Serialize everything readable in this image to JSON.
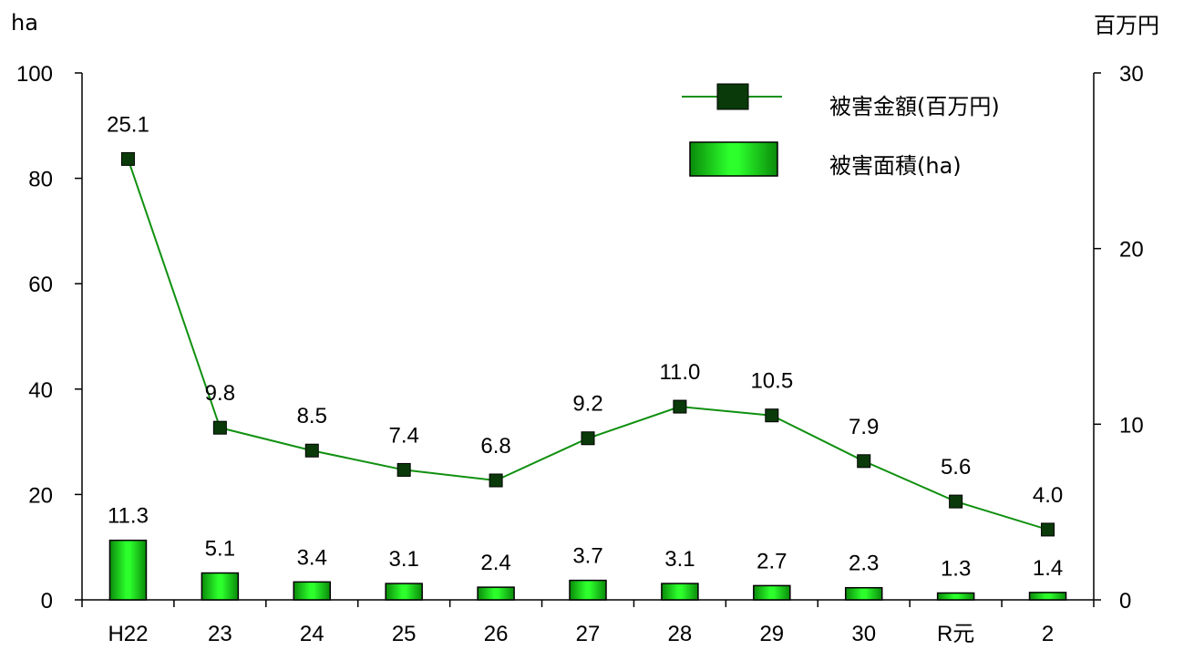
{
  "chart_data": {
    "type": "bar+line",
    "categories": [
      "H22",
      "23",
      "24",
      "25",
      "26",
      "27",
      "28",
      "29",
      "30",
      "R元",
      "2"
    ],
    "left_axis": {
      "unit_label": "ha",
      "range": [
        0,
        100
      ],
      "ticks": [
        "0",
        "20",
        "40",
        "60",
        "80",
        "100"
      ]
    },
    "right_axis": {
      "unit_label": "百万円",
      "range": [
        0,
        30
      ],
      "ticks": [
        "0",
        "10",
        "20",
        "30"
      ]
    },
    "series": [
      {
        "name": "被害金額(百万円)",
        "kind": "line",
        "axis": "right",
        "color": "#109010",
        "marker_color": "#0a3a0a",
        "values": [
          25.1,
          9.8,
          8.5,
          7.4,
          6.8,
          9.2,
          11.0,
          10.5,
          7.9,
          5.6,
          4.0
        ],
        "value_labels": [
          "25.1",
          "9.8",
          "8.5",
          "7.4",
          "6.8",
          "9.2",
          "11.0",
          "10.5",
          "7.9",
          "5.6",
          "4.0"
        ]
      },
      {
        "name": "被害面積(ha)",
        "kind": "bar",
        "axis": "left",
        "color": "#22ee22",
        "values": [
          11.3,
          5.1,
          3.4,
          3.1,
          2.4,
          3.7,
          3.1,
          2.7,
          2.3,
          1.3,
          1.4
        ],
        "value_labels": [
          "11.3",
          "5.1",
          "3.4",
          "3.1",
          "2.4",
          "3.7",
          "3.1",
          "2.7",
          "2.3",
          "1.3",
          "1.4"
        ]
      }
    ],
    "legend_position": "top-right",
    "grid": false
  }
}
